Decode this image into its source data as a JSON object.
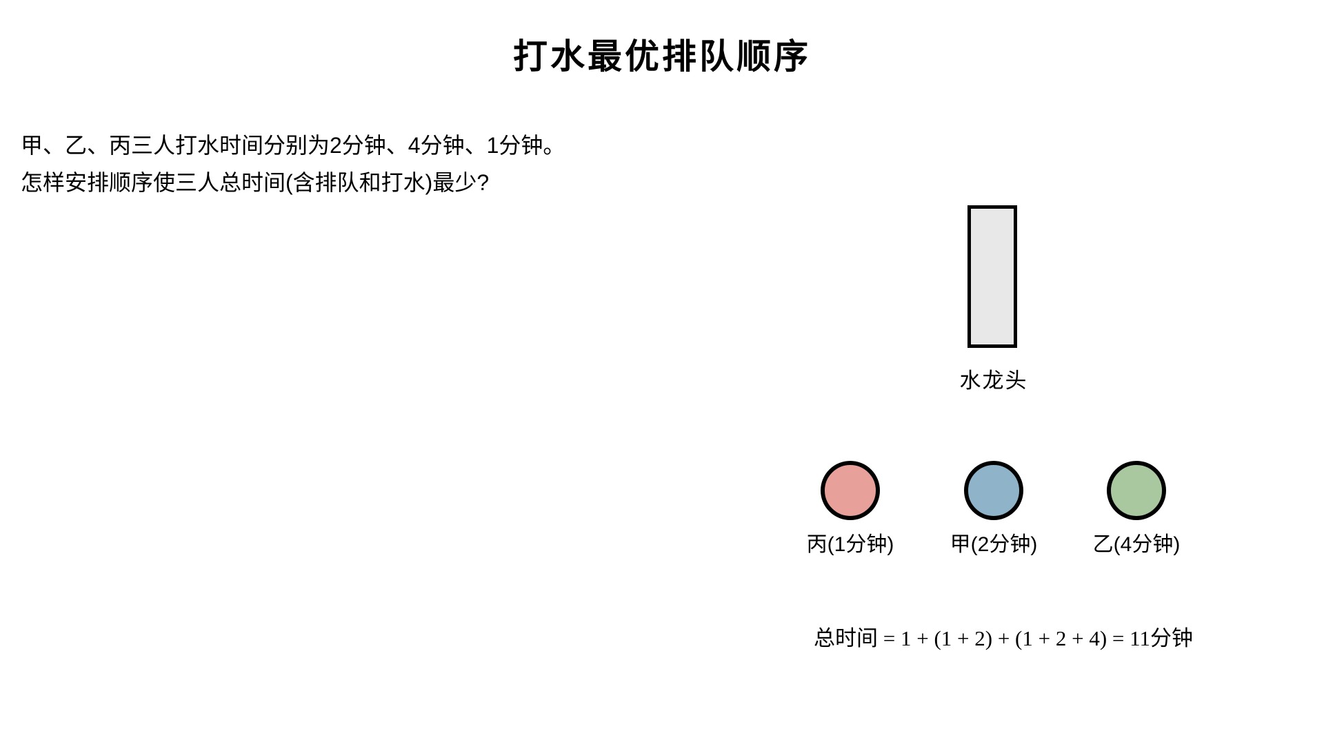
{
  "page": {
    "title": "打水最优排队顺序",
    "background_color": "#ffffff",
    "text_color": "#000000",
    "problem": {
      "line1": "甲、乙、丙三人打水时间分别为2分钟、4分钟、1分钟。",
      "line2": "怎样安排顺序使三人总时间(含排队和打水)最少?"
    }
  },
  "diagram": {
    "faucet": {
      "label": "水龙头",
      "fill": "#e8e8e8",
      "stroke": "#000000"
    },
    "queue": [
      {
        "person": "丙",
        "minutes": 1,
        "label": "丙(1分钟)",
        "color": "#e8a09a"
      },
      {
        "person": "甲",
        "minutes": 2,
        "label": "甲(2分钟)",
        "color": "#8fb4c9"
      },
      {
        "person": "乙",
        "minutes": 4,
        "label": "乙(4分钟)",
        "color": "#a9c8a0"
      }
    ],
    "formula": "总时间 = 1 + (1 + 2) + (1 + 2 + 4) = 11分钟"
  }
}
